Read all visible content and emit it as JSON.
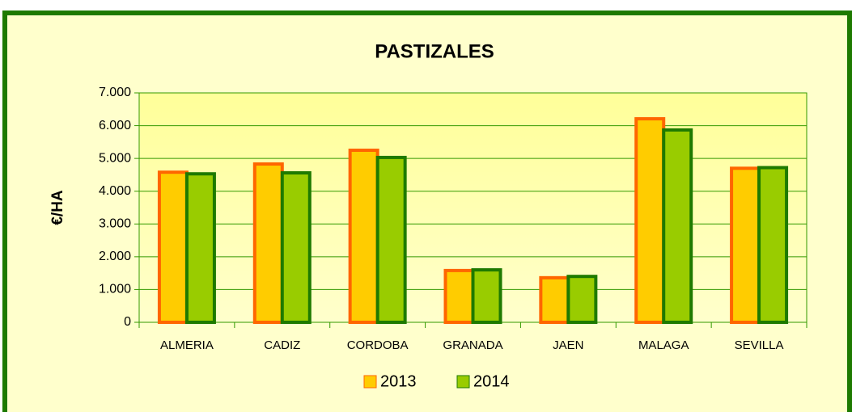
{
  "chart_data": {
    "type": "bar",
    "title": "PASTIZALES",
    "y_label": "€/HA",
    "categories": [
      "ALMERIA",
      "CADIZ",
      "CORDOBA",
      "GRANADA",
      "JAEN",
      "MALAGA",
      "SEVILLA"
    ],
    "series": [
      {
        "name": "2013",
        "color": "#ffcc00",
        "edge": "#ff6600",
        "values": [
          4580,
          4830,
          5250,
          1580,
          1360,
          6210,
          4700
        ]
      },
      {
        "name": "2014",
        "color": "#99cc00",
        "edge": "#1e7a00",
        "values": [
          4530,
          4560,
          5030,
          1600,
          1400,
          5870,
          4720
        ]
      }
    ],
    "ylim": [
      0,
      7000
    ],
    "yticks": [
      0,
      {
        "value": 1000,
        "label": "1.000"
      },
      {
        "value": 2000,
        "label": "2.000"
      },
      {
        "value": 3000,
        "label": "3.000"
      },
      {
        "value": 4000,
        "label": "4.000"
      },
      {
        "value": 5000,
        "label": "5.000"
      },
      {
        "value": 6000,
        "label": "6.000"
      },
      {
        "value": 7000,
        "label": "7.000"
      }
    ],
    "grid": true,
    "legend": "bottom"
  }
}
